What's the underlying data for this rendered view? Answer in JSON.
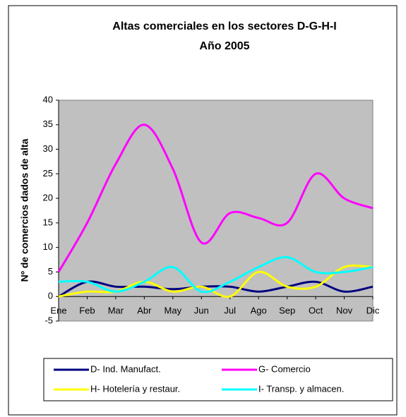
{
  "chart_data": {
    "type": "line",
    "title": "Altas comerciales en los sectores D-G-H-I",
    "subtitle": "Año 2005",
    "y_label": "Nº de comercios dados de alta",
    "categories": [
      "Ene",
      "Feb",
      "Mar",
      "Abr",
      "May",
      "Jun",
      "Jul",
      "Ago",
      "Sep",
      "Oct",
      "Nov",
      "Dic"
    ],
    "series": [
      {
        "name": "D- Ind. Manufact.",
        "color": "#000080",
        "values": [
          0,
          3,
          2,
          2,
          1.5,
          2,
          2,
          1,
          2,
          3,
          1,
          2
        ]
      },
      {
        "name": "G- Comercio",
        "color": "#ff00ff",
        "values": [
          5,
          15,
          27,
          35,
          26,
          11,
          17,
          16,
          15,
          25,
          20,
          18
        ]
      },
      {
        "name": "H- Hotelería y restaur.",
        "color": "#ffff00",
        "values": [
          0,
          1,
          1,
          3,
          1,
          2,
          0,
          5,
          2,
          2,
          6,
          6
        ]
      },
      {
        "name": "I- Transp. y almacen.",
        "color": "#00ffff",
        "values": [
          3,
          3,
          1,
          3,
          6,
          1,
          3,
          6,
          8,
          5,
          5,
          6
        ]
      }
    ],
    "ylim": [
      -5,
      40
    ],
    "yticks": [
      -5,
      0,
      5,
      10,
      15,
      20,
      25,
      30,
      35,
      40
    ],
    "plot_background": "#c0c0c0",
    "legend": "bottom"
  }
}
